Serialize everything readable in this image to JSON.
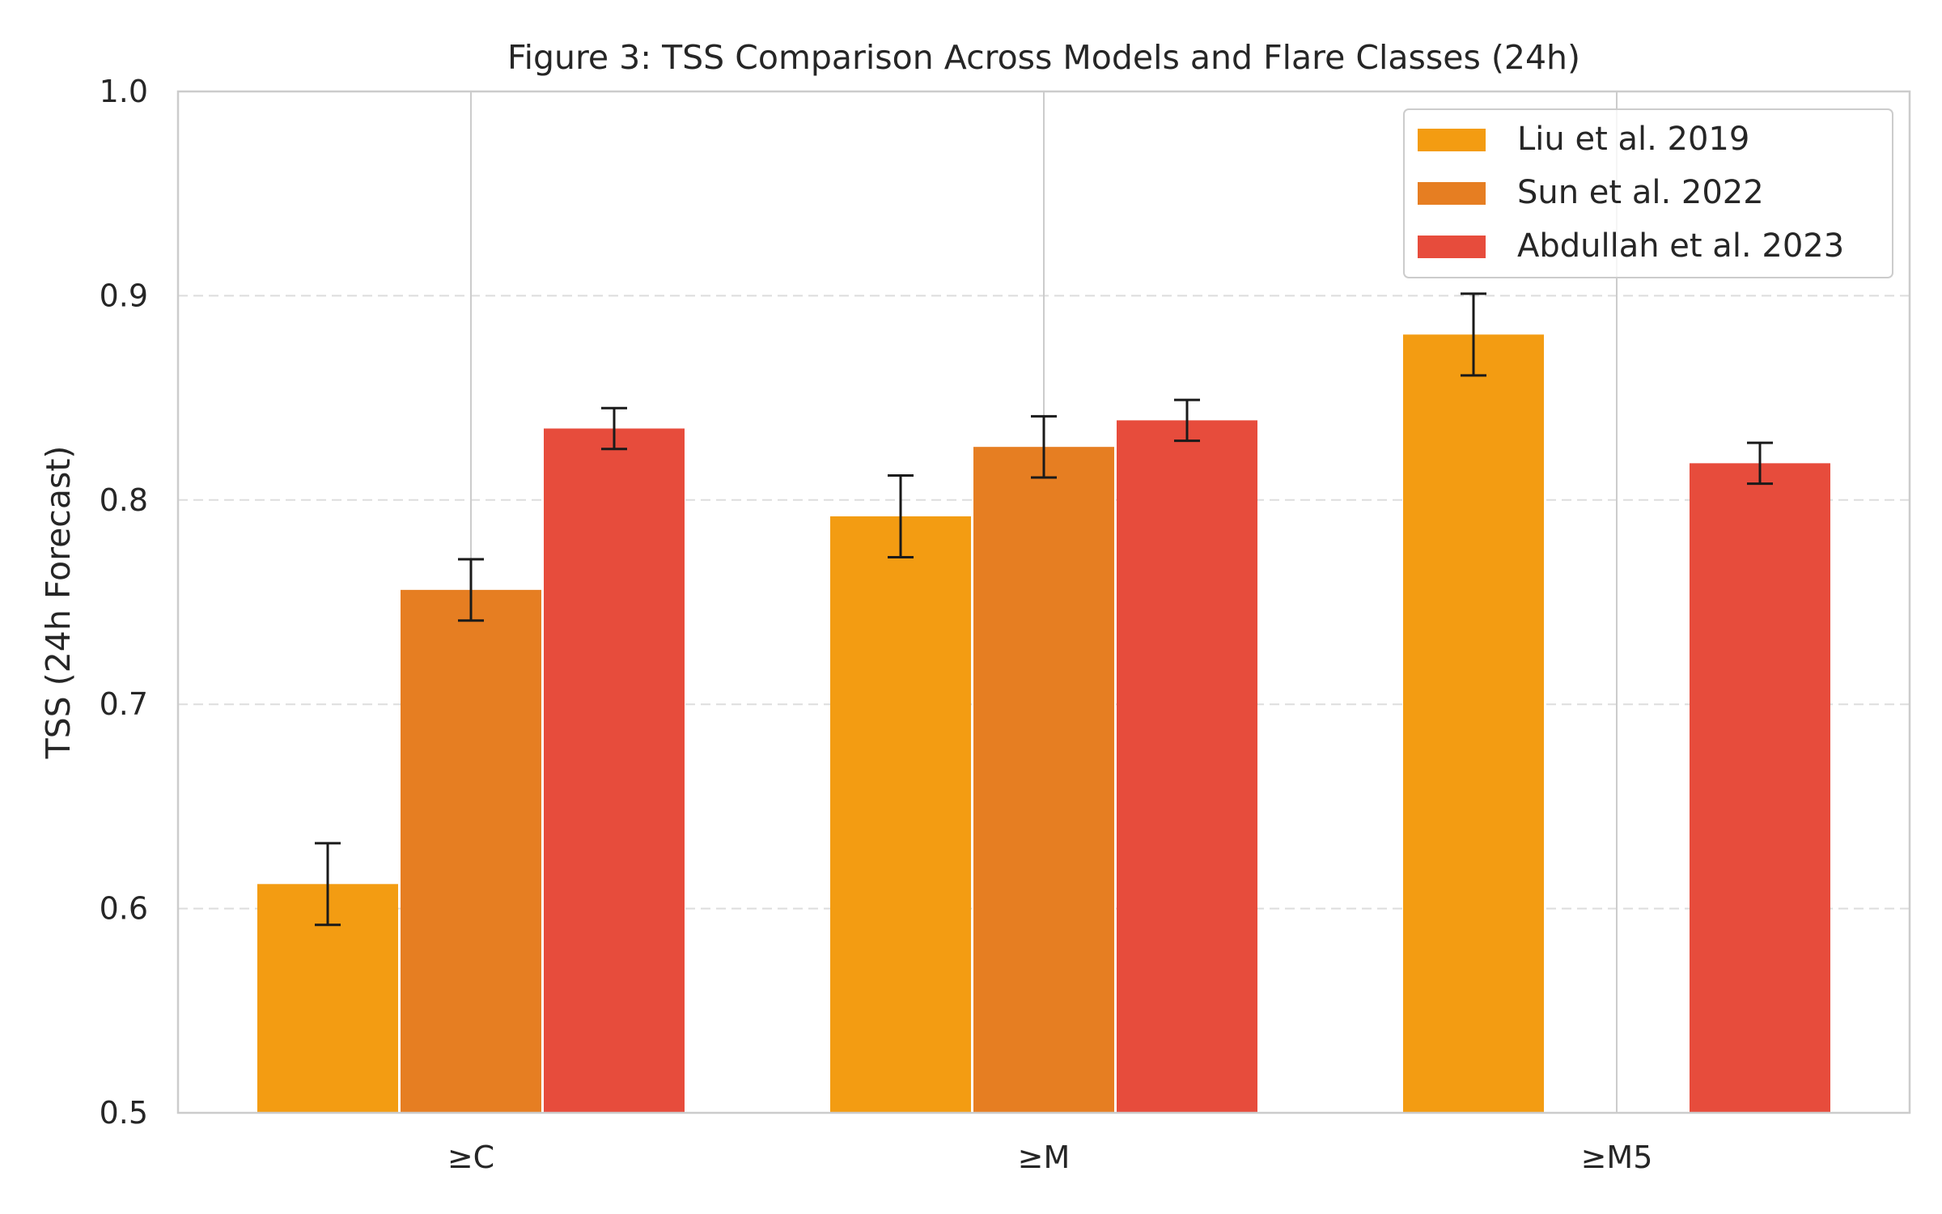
{
  "chart_data": {
    "type": "bar",
    "title": "Figure 3: TSS Comparison Across Models and Flare Classes (24h)",
    "xlabel": "",
    "ylabel": "TSS (24h Forecast)",
    "ylim": [
      0.5,
      1.0
    ],
    "yticks": [
      "0.5",
      "0.6",
      "0.7",
      "0.8",
      "0.9",
      "1.0"
    ],
    "categories": [
      "≥C",
      "≥M",
      "≥M5"
    ],
    "series": [
      {
        "name": "Liu et al. 2019",
        "color": "#f39c12",
        "values": [
          0.612,
          0.792,
          0.881
        ],
        "errors": [
          0.02,
          0.02,
          0.02
        ]
      },
      {
        "name": "Sun et al. 2022",
        "color": "#e67e22",
        "values": [
          0.756,
          0.826,
          null
        ],
        "errors": [
          0.015,
          0.015,
          null
        ]
      },
      {
        "name": "Abdullah et al. 2023",
        "color": "#e74c3c",
        "values": [
          0.835,
          0.839,
          0.818
        ],
        "errors": [
          0.01,
          0.01,
          0.01
        ]
      }
    ],
    "grid": {
      "y": "dashed",
      "x": "solid"
    },
    "legend_position": "top-right"
  }
}
